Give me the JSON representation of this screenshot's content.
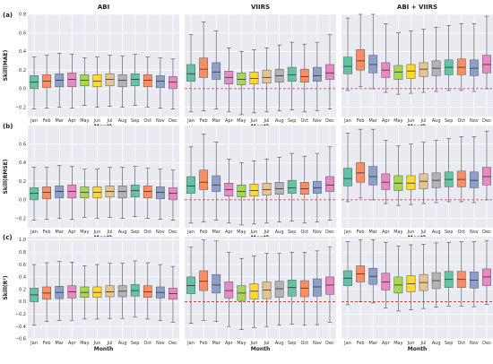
{
  "chart_data": {
    "type": "box",
    "columns": [
      "ABI",
      "VIIRS",
      "ABI + VIIRS"
    ],
    "row_tags": [
      "(a)",
      "(b)",
      "(c)"
    ],
    "ylabels": [
      "Skill(MAE)",
      "Skill(RMSE)",
      "Skill(R²)"
    ],
    "xlabel": "Month",
    "categories": [
      "Jan",
      "Feb",
      "Mar",
      "Apr",
      "May",
      "Jun",
      "Jul",
      "Aug",
      "Sep",
      "Oct",
      "Nov",
      "Dec"
    ],
    "colors": [
      "#66c2a5",
      "#fc8d62",
      "#8da0cb",
      "#e78ac3",
      "#a6d854",
      "#ffd92f",
      "#e5c494",
      "#b3b3b3",
      "#66c2a5",
      "#fc8d62",
      "#8da0cb",
      "#e78ac3"
    ],
    "zero_line_color": "#c0392b",
    "reference_line": 0,
    "rows": [
      {
        "ylim": [
          -0.3,
          0.8
        ],
        "yticks": [
          -0.2,
          0.0,
          0.2,
          0.4,
          0.6,
          0.8
        ],
        "ytick_labels": [
          "−0.2",
          "0.0",
          "0.2",
          "0.4",
          "0.6",
          "0.8"
        ],
        "panels": [
          [
            [
              -0.22,
              0.0,
              0.07,
              0.14,
              0.34
            ],
            [
              -0.21,
              0.01,
              0.08,
              0.15,
              0.36
            ],
            [
              -0.2,
              0.02,
              0.09,
              0.16,
              0.38
            ],
            [
              -0.21,
              0.02,
              0.1,
              0.17,
              0.37
            ],
            [
              -0.18,
              0.03,
              0.09,
              0.15,
              0.33
            ],
            [
              -0.2,
              0.02,
              0.08,
              0.15,
              0.34
            ],
            [
              -0.19,
              0.03,
              0.1,
              0.16,
              0.36
            ],
            [
              -0.2,
              0.02,
              0.09,
              0.15,
              0.35
            ],
            [
              -0.18,
              0.03,
              0.1,
              0.16,
              0.37
            ],
            [
              -0.2,
              0.02,
              0.09,
              0.15,
              0.34
            ],
            [
              -0.21,
              0.01,
              0.08,
              0.14,
              0.33
            ],
            [
              -0.22,
              0.0,
              0.07,
              0.13,
              0.32
            ]
          ],
          [
            [
              -0.25,
              0.08,
              0.16,
              0.26,
              0.58
            ],
            [
              -0.24,
              0.12,
              0.21,
              0.33,
              0.72
            ],
            [
              -0.22,
              0.1,
              0.18,
              0.28,
              0.62
            ],
            [
              -0.25,
              0.05,
              0.12,
              0.19,
              0.44
            ],
            [
              -0.28,
              0.04,
              0.1,
              0.17,
              0.4
            ],
            [
              -0.26,
              0.05,
              0.11,
              0.18,
              0.42
            ],
            [
              -0.25,
              0.06,
              0.12,
              0.2,
              0.44
            ],
            [
              -0.24,
              0.07,
              0.14,
              0.21,
              0.47
            ],
            [
              -0.23,
              0.08,
              0.15,
              0.23,
              0.5
            ],
            [
              -0.25,
              0.07,
              0.13,
              0.21,
              0.48
            ],
            [
              -0.24,
              0.08,
              0.14,
              0.23,
              0.5
            ],
            [
              -0.22,
              0.1,
              0.17,
              0.26,
              0.58
            ]
          ],
          [
            [
              -0.02,
              0.16,
              0.24,
              0.34,
              0.76
            ],
            [
              0.02,
              0.2,
              0.3,
              0.42,
              0.8
            ],
            [
              0.0,
              0.17,
              0.26,
              0.36,
              0.8
            ],
            [
              -0.04,
              0.12,
              0.2,
              0.28,
              0.7
            ],
            [
              -0.06,
              0.1,
              0.18,
              0.25,
              0.6
            ],
            [
              -0.05,
              0.11,
              0.19,
              0.26,
              0.62
            ],
            [
              -0.04,
              0.13,
              0.21,
              0.28,
              0.64
            ],
            [
              -0.03,
              0.14,
              0.22,
              0.3,
              0.66
            ],
            [
              -0.02,
              0.15,
              0.23,
              0.31,
              0.68
            ],
            [
              -0.02,
              0.15,
              0.23,
              0.32,
              0.7
            ],
            [
              -0.03,
              0.14,
              0.22,
              0.31,
              0.7
            ],
            [
              0.0,
              0.17,
              0.26,
              0.36,
              0.78
            ]
          ]
        ]
      },
      {
        "ylim": [
          -0.3,
          0.8
        ],
        "yticks": [
          -0.2,
          0.0,
          0.2,
          0.4,
          0.6
        ],
        "ytick_labels": [
          "−0.2",
          "0.0",
          "0.2",
          "0.4",
          "0.6"
        ],
        "panels": [
          [
            [
              -0.22,
              0.0,
              0.07,
              0.13,
              0.35
            ],
            [
              -0.21,
              0.01,
              0.08,
              0.14,
              0.35
            ],
            [
              -0.2,
              0.02,
              0.09,
              0.15,
              0.37
            ],
            [
              -0.21,
              0.02,
              0.09,
              0.16,
              0.36
            ],
            [
              -0.19,
              0.02,
              0.08,
              0.14,
              0.33
            ],
            [
              -0.2,
              0.02,
              0.08,
              0.14,
              0.33
            ],
            [
              -0.19,
              0.03,
              0.09,
              0.15,
              0.35
            ],
            [
              -0.2,
              0.02,
              0.09,
              0.15,
              0.35
            ],
            [
              -0.18,
              0.03,
              0.1,
              0.16,
              0.36
            ],
            [
              -0.2,
              0.02,
              0.09,
              0.15,
              0.34
            ],
            [
              -0.21,
              0.01,
              0.08,
              0.14,
              0.33
            ],
            [
              -0.22,
              0.0,
              0.07,
              0.13,
              0.32
            ]
          ],
          [
            [
              -0.25,
              0.07,
              0.15,
              0.25,
              0.57
            ],
            [
              -0.24,
              0.11,
              0.19,
              0.32,
              0.71
            ],
            [
              -0.22,
              0.09,
              0.16,
              0.26,
              0.62
            ],
            [
              -0.25,
              0.04,
              0.11,
              0.18,
              0.44
            ],
            [
              -0.27,
              0.03,
              0.09,
              0.16,
              0.4
            ],
            [
              -0.26,
              0.04,
              0.1,
              0.17,
              0.42
            ],
            [
              -0.25,
              0.05,
              0.11,
              0.18,
              0.44
            ],
            [
              -0.24,
              0.06,
              0.12,
              0.19,
              0.46
            ],
            [
              -0.23,
              0.07,
              0.13,
              0.21,
              0.5
            ],
            [
              -0.25,
              0.06,
              0.12,
              0.19,
              0.47
            ],
            [
              -0.24,
              0.07,
              0.13,
              0.2,
              0.5
            ],
            [
              -0.22,
              0.09,
              0.16,
              0.25,
              0.57
            ]
          ],
          [
            [
              -0.02,
              0.15,
              0.23,
              0.34,
              0.72
            ],
            [
              0.02,
              0.19,
              0.29,
              0.4,
              0.76
            ],
            [
              0.0,
              0.16,
              0.25,
              0.36,
              0.76
            ],
            [
              -0.04,
              0.11,
              0.19,
              0.28,
              0.64
            ],
            [
              -0.06,
              0.1,
              0.18,
              0.26,
              0.58
            ],
            [
              -0.05,
              0.11,
              0.18,
              0.26,
              0.6
            ],
            [
              -0.04,
              0.12,
              0.2,
              0.28,
              0.62
            ],
            [
              -0.03,
              0.13,
              0.21,
              0.29,
              0.64
            ],
            [
              -0.02,
              0.14,
              0.22,
              0.3,
              0.66
            ],
            [
              -0.02,
              0.14,
              0.22,
              0.31,
              0.68
            ],
            [
              -0.03,
              0.13,
              0.21,
              0.3,
              0.68
            ],
            [
              0.0,
              0.16,
              0.25,
              0.35,
              0.74
            ]
          ]
        ]
      },
      {
        "ylim": [
          -0.6,
          1.05
        ],
        "yticks": [
          -0.6,
          -0.4,
          -0.2,
          0.0,
          0.2,
          0.4,
          0.6,
          0.8,
          1.0
        ],
        "ytick_labels": [
          "−0.6",
          "−0.4",
          "−0.2",
          "0.0",
          "0.2",
          "0.4",
          "0.6",
          "0.8",
          "1.0"
        ],
        "panels": [
          [
            [
              -0.38,
              0.0,
              0.11,
              0.22,
              0.6
            ],
            [
              -0.32,
              0.04,
              0.14,
              0.24,
              0.63
            ],
            [
              -0.3,
              0.05,
              0.15,
              0.25,
              0.65
            ],
            [
              -0.3,
              0.06,
              0.16,
              0.26,
              0.64
            ],
            [
              -0.28,
              0.07,
              0.15,
              0.24,
              0.58
            ],
            [
              -0.28,
              0.07,
              0.15,
              0.24,
              0.6
            ],
            [
              -0.27,
              0.08,
              0.16,
              0.26,
              0.62
            ],
            [
              -0.27,
              0.08,
              0.17,
              0.26,
              0.62
            ],
            [
              -0.25,
              0.09,
              0.18,
              0.28,
              0.66
            ],
            [
              -0.28,
              0.07,
              0.16,
              0.26,
              0.63
            ],
            [
              -0.3,
              0.06,
              0.15,
              0.24,
              0.6
            ],
            [
              -0.33,
              0.04,
              0.13,
              0.22,
              0.57
            ]
          ],
          [
            [
              -0.35,
              0.13,
              0.26,
              0.4,
              0.88
            ],
            [
              -0.3,
              0.18,
              0.33,
              0.5,
              1.0
            ],
            [
              -0.32,
              0.14,
              0.27,
              0.44,
              0.98
            ],
            [
              -0.4,
              0.06,
              0.18,
              0.32,
              0.8
            ],
            [
              -0.45,
              0.02,
              0.14,
              0.26,
              0.7
            ],
            [
              -0.42,
              0.04,
              0.17,
              0.29,
              0.74
            ],
            [
              -0.4,
              0.05,
              0.19,
              0.32,
              0.78
            ],
            [
              -0.38,
              0.07,
              0.21,
              0.33,
              0.78
            ],
            [
              -0.36,
              0.09,
              0.23,
              0.35,
              0.8
            ],
            [
              -0.38,
              0.08,
              0.22,
              0.34,
              0.8
            ],
            [
              -0.37,
              0.09,
              0.24,
              0.37,
              0.82
            ],
            [
              -0.33,
              0.12,
              0.27,
              0.4,
              0.88
            ]
          ],
          [
            [
              -0.05,
              0.26,
              0.38,
              0.5,
              0.97
            ],
            [
              0.0,
              0.32,
              0.45,
              0.58,
              1.0
            ],
            [
              -0.02,
              0.28,
              0.41,
              0.54,
              1.0
            ],
            [
              -0.1,
              0.19,
              0.32,
              0.46,
              0.96
            ],
            [
              -0.15,
              0.14,
              0.27,
              0.4,
              0.9
            ],
            [
              -0.13,
              0.16,
              0.29,
              0.42,
              0.92
            ],
            [
              -0.11,
              0.18,
              0.31,
              0.44,
              0.93
            ],
            [
              -0.09,
              0.21,
              0.34,
              0.47,
              0.95
            ],
            [
              -0.07,
              0.23,
              0.36,
              0.49,
              0.96
            ],
            [
              -0.07,
              0.23,
              0.36,
              0.49,
              0.97
            ],
            [
              -0.08,
              0.22,
              0.35,
              0.48,
              0.97
            ],
            [
              -0.04,
              0.26,
              0.4,
              0.53,
              0.99
            ]
          ]
        ]
      }
    ]
  }
}
